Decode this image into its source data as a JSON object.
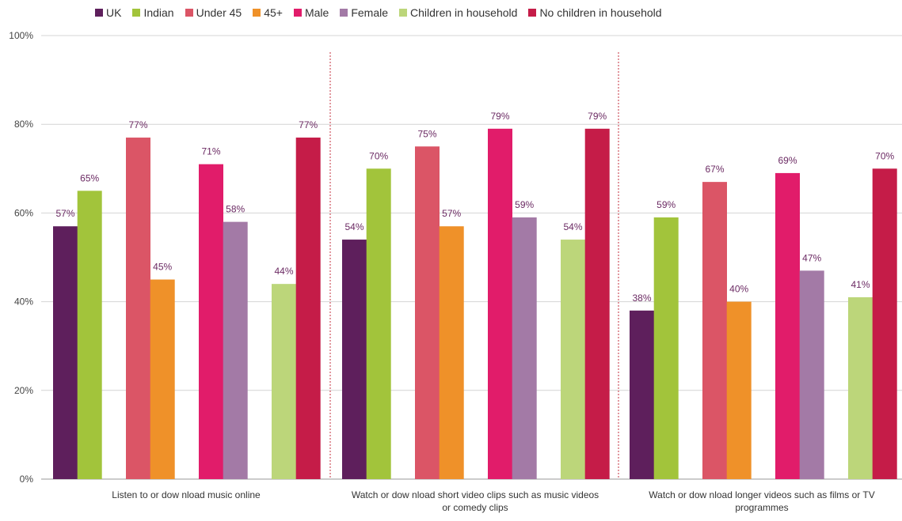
{
  "chart_data": {
    "type": "bar",
    "categories": [
      [
        "Listen to or dow nload music online"
      ],
      [
        "Watch or dow nload short video clips such as music videos",
        "or comedy clips"
      ],
      [
        "Watch or dow nload longer videos such as films or TV",
        "programmes"
      ]
    ],
    "series": [
      {
        "name": "UK",
        "color": "#5e1f5c",
        "values": [
          57,
          54,
          38
        ]
      },
      {
        "name": "Indian",
        "color": "#a2c43b",
        "values": [
          65,
          70,
          59
        ]
      },
      {
        "name": "Under 45",
        "color": "#db5566",
        "values": [
          77,
          75,
          67
        ]
      },
      {
        "name": "45+",
        "color": "#ef9129",
        "values": [
          45,
          57,
          40
        ]
      },
      {
        "name": "Male",
        "color": "#e11c6a",
        "values": [
          71,
          79,
          69
        ]
      },
      {
        "name": "Female",
        "color": "#a37aa6",
        "values": [
          58,
          59,
          47
        ]
      },
      {
        "name": "Children in household",
        "color": "#bcd67a",
        "values": [
          44,
          54,
          41
        ]
      },
      {
        "name": "No children in household",
        "color": "#c51c48",
        "values": [
          77,
          79,
          70
        ]
      }
    ],
    "value_suffix": "%",
    "ylim": [
      0,
      100
    ],
    "yticks": [
      "0%",
      "20%",
      "40%",
      "60%",
      "80%",
      "100%"
    ],
    "grid": true,
    "legend_position": "top",
    "label_color": "#6b2a63",
    "title": "",
    "xlabel": "",
    "ylabel": ""
  }
}
